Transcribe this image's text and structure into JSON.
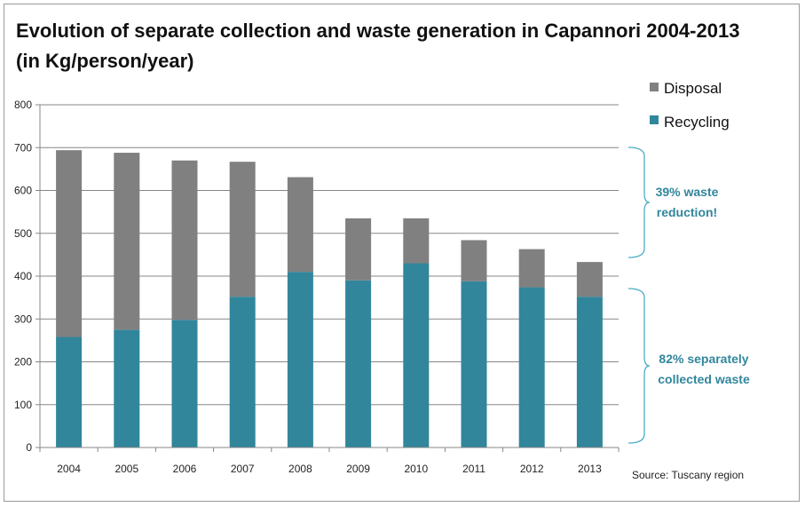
{
  "chart_data": {
    "type": "bar",
    "stacked": true,
    "title_line1": "Evolution of separate collection and waste generation  in Capannori  2004-2013",
    "title_line2": "(in Kg/person/year)",
    "categories": [
      "2004",
      "2005",
      "2006",
      "2007",
      "2008",
      "2009",
      "2010",
      "2011",
      "2012",
      "2013"
    ],
    "series": [
      {
        "name": "Recycling",
        "color": "#31869b",
        "values": [
          258,
          275,
          298,
          352,
          410,
          390,
          430,
          388,
          374,
          352
        ]
      },
      {
        "name": "Disposal",
        "color": "#808080",
        "values": [
          436,
          413,
          372,
          315,
          221,
          145,
          105,
          96,
          89,
          81
        ]
      }
    ],
    "ylim": [
      0,
      800
    ],
    "yticks": [
      0,
      100,
      200,
      300,
      400,
      500,
      600,
      700,
      800
    ],
    "grid": true,
    "legend_position": "top-right",
    "legend_items": [
      "Disposal",
      "Recycling"
    ],
    "annotations": [
      {
        "lines": [
          "39% waste",
          "reduction!"
        ],
        "color": "#31869b"
      },
      {
        "lines": [
          "82% separately",
          "collected waste"
        ],
        "color": "#31869b"
      }
    ],
    "source": "Source:  Tuscany region"
  }
}
